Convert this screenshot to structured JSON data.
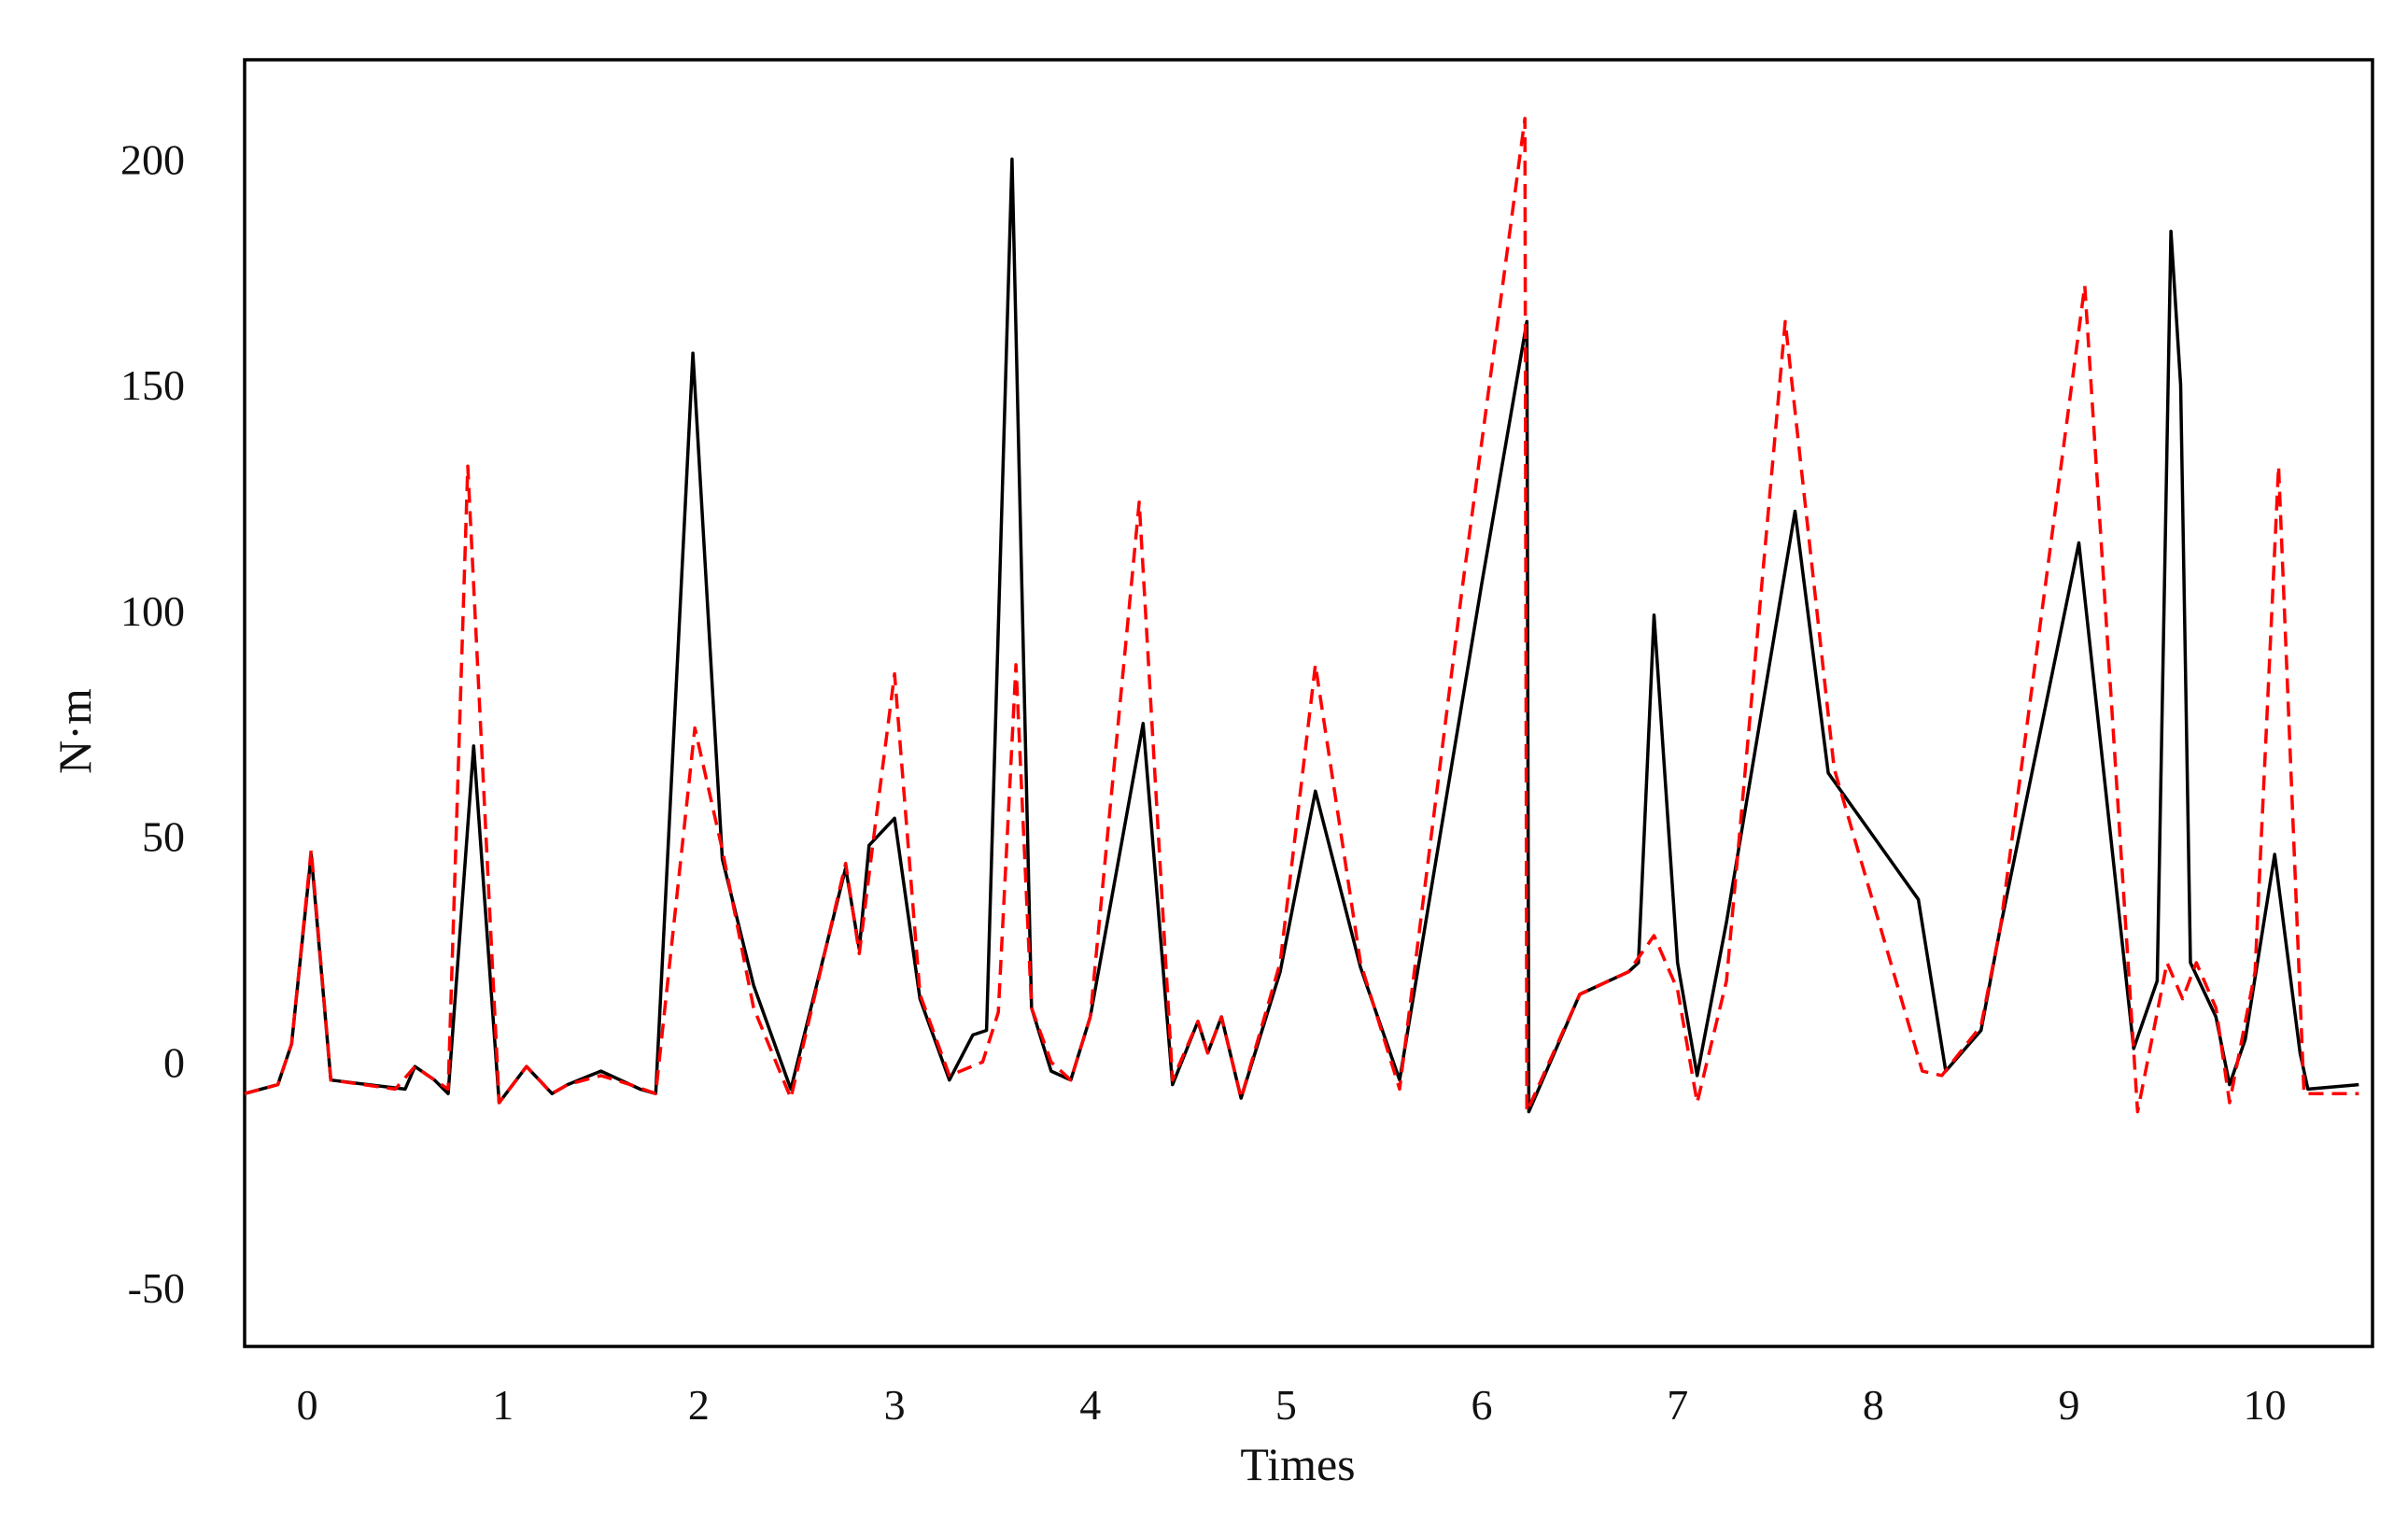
{
  "chart_data": {
    "type": "line",
    "title": "",
    "xlabel": "Times",
    "ylabel": "N·m",
    "xlim": [
      -0.32,
      10.55
    ],
    "ylim": [
      -63,
      222
    ],
    "xticks": [
      0,
      1,
      2,
      3,
      4,
      5,
      6,
      7,
      8,
      9,
      10
    ],
    "yticks": [
      -50,
      0,
      50,
      100,
      150,
      200
    ],
    "grid": false,
    "legend": "none",
    "series": [
      {
        "color": "#000000",
        "style": "solid",
        "x": [
          -0.32,
          -0.15,
          -0.08,
          0.02,
          0.12,
          0.5,
          0.55,
          0.65,
          0.72,
          0.85,
          0.98,
          1.12,
          1.25,
          1.33,
          1.5,
          1.7,
          1.78,
          1.97,
          2.12,
          2.28,
          2.47,
          2.75,
          2.82,
          2.87,
          3.0,
          3.13,
          3.28,
          3.4,
          3.47,
          3.6,
          3.7,
          3.8,
          3.9,
          4.0,
          4.27,
          4.42,
          4.55,
          4.6,
          4.67,
          4.77,
          4.97,
          5.15,
          5.38,
          5.58,
          6.0,
          6.23,
          6.24,
          6.5,
          6.75,
          6.8,
          6.88,
          7.0,
          7.1,
          7.25,
          7.6,
          7.77,
          8.23,
          8.37,
          8.55,
          8.65,
          9.05,
          9.33,
          9.45,
          9.52,
          9.57,
          9.62,
          9.75,
          9.82,
          9.9,
          10.05,
          10.18,
          10.22,
          10.48
        ],
        "y": [
          -7,
          -5,
          4,
          46,
          -4,
          -6,
          -1,
          -4,
          -7,
          70,
          -9,
          -1,
          -7,
          -5,
          -2,
          -6,
          -7,
          157,
          45,
          17,
          -6,
          43,
          25,
          48,
          54,
          14,
          -4,
          6,
          7,
          200,
          12,
          -2,
          -4,
          10,
          75,
          -5,
          9,
          2,
          10,
          -8,
          20,
          60,
          21,
          -4,
          106,
          164,
          -11,
          15,
          20,
          22,
          99,
          22,
          -3,
          31,
          122,
          64,
          36,
          -2,
          7,
          30,
          115,
          3,
          18,
          184,
          150,
          22,
          10,
          -5,
          5,
          46,
          2,
          -6,
          -5
        ]
      },
      {
        "color": "#ff0000",
        "style": "dashed",
        "x": [
          -0.32,
          -0.15,
          -0.08,
          0.02,
          0.12,
          0.45,
          0.55,
          0.65,
          0.72,
          0.82,
          0.98,
          1.12,
          1.25,
          1.33,
          1.5,
          1.65,
          1.78,
          1.98,
          2.12,
          2.28,
          2.47,
          2.75,
          2.82,
          2.9,
          3.0,
          3.13,
          3.28,
          3.45,
          3.53,
          3.62,
          3.7,
          3.8,
          3.9,
          4.0,
          4.25,
          4.42,
          4.55,
          4.6,
          4.67,
          4.77,
          4.97,
          5.15,
          5.38,
          5.58,
          5.9,
          6.22,
          6.23,
          6.5,
          6.75,
          6.88,
          7.0,
          7.1,
          7.25,
          7.55,
          7.8,
          8.25,
          8.35,
          8.55,
          8.65,
          9.08,
          9.35,
          9.5,
          9.58,
          9.65,
          9.75,
          9.82,
          9.95,
          10.07,
          10.2,
          10.48
        ],
        "y": [
          -7,
          -5,
          4,
          47,
          -4,
          -6,
          -1,
          -4,
          -6,
          132,
          -9,
          -1,
          -7,
          -5,
          -3,
          -5,
          -7,
          74,
          47,
          12,
          -8,
          44,
          24,
          52,
          86,
          15,
          -3,
          0,
          11,
          88,
          12,
          0,
          -4,
          10,
          124,
          -4,
          9,
          2,
          10,
          -8,
          22,
          88,
          22,
          -6,
          105,
          209,
          -11,
          15,
          20,
          28,
          16,
          -9,
          18,
          164,
          65,
          -2,
          -3,
          8,
          30,
          172,
          -11,
          22,
          14,
          22,
          12,
          -9,
          20,
          132,
          -7,
          -7
        ]
      }
    ]
  }
}
